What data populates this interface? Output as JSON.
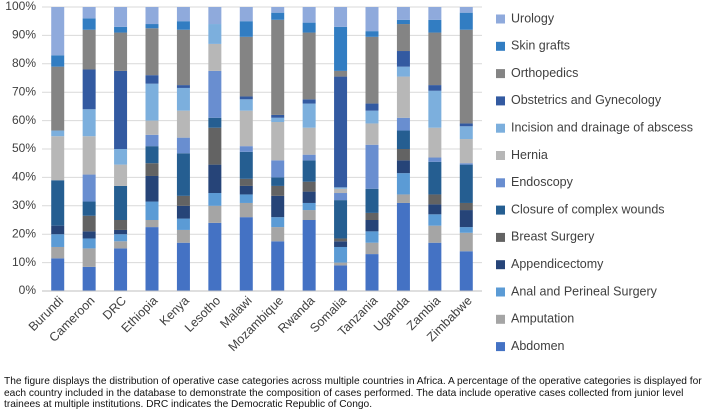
{
  "chart_data": {
    "type": "stacked_bar",
    "categories": [
      "Burundi",
      "Cameroon",
      "DRC",
      "Ethiopia",
      "Kenya",
      "Lesotho",
      "Malawi",
      "Mozambique",
      "Rwanda",
      "Somalia",
      "Tanzania",
      "Uganda",
      "Zambia",
      "Zimbabwe"
    ],
    "series": [
      {
        "name": "Abdomen",
        "color": "#4472c4",
        "values": [
          11.5,
          8.5,
          15,
          22.5,
          17,
          24,
          26,
          17.5,
          25,
          9,
          13,
          31,
          17,
          14
        ]
      },
      {
        "name": "Amputation",
        "color": "#a5a5a5",
        "values": [
          4,
          6.5,
          2.5,
          2.5,
          4.5,
          6,
          5,
          5,
          3.5,
          1,
          4,
          3,
          6,
          6.5
        ]
      },
      {
        "name": "Anal and Perineal Surgery",
        "color": "#5b9bd5",
        "values": [
          4.5,
          3.5,
          2.5,
          6.5,
          4,
          4.5,
          3,
          3.5,
          2.5,
          5.5,
          4,
          7.5,
          4,
          2
        ]
      },
      {
        "name": "Appendicectomy",
        "color": "#264478",
        "values": [
          3,
          2.5,
          1.5,
          9,
          4.5,
          10,
          3,
          7.5,
          4,
          2,
          4,
          4.5,
          3.5,
          6
        ]
      },
      {
        "name": "Breast Surgery",
        "color": "#636363",
        "values": [
          0,
          5.5,
          3.5,
          4.5,
          3.5,
          13,
          2.5,
          3.5,
          3.5,
          1,
          2.5,
          4,
          3.5,
          2.5
        ]
      },
      {
        "name": "Closure of complex wounds",
        "color": "#255e91",
        "values": [
          16,
          5,
          12,
          6,
          15,
          3.5,
          9.5,
          3,
          7.5,
          13.5,
          8.5,
          6.5,
          11.5,
          13.5
        ]
      },
      {
        "name": "Endoscopy",
        "color": "#698ed0",
        "values": [
          0,
          9.5,
          0,
          4,
          5.5,
          16.5,
          2,
          6,
          2,
          2.5,
          15.5,
          4.5,
          1.5,
          0.5
        ]
      },
      {
        "name": "Hernia",
        "color": "#b7b7b7",
        "values": [
          15.5,
          13.5,
          7.5,
          5,
          9.5,
          9.5,
          12.5,
          13.5,
          9.5,
          1.5,
          7.5,
          14.5,
          10.5,
          8.5
        ]
      },
      {
        "name": "Incision and drainage of abscess",
        "color": "#7cafdd",
        "values": [
          2,
          9.5,
          5.5,
          13,
          8,
          7,
          4,
          1.5,
          8.5,
          0.5,
          4.5,
          3.5,
          13,
          4.5
        ]
      },
      {
        "name": "Obstetrics and Gynecology",
        "color": "#335aa1",
        "values": [
          0,
          14,
          27.5,
          3,
          1,
          0,
          1,
          1,
          1.5,
          39,
          2.5,
          5.5,
          2,
          1
        ]
      },
      {
        "name": "Orthopedics",
        "color": "#848484",
        "values": [
          22.5,
          14,
          13.5,
          16.5,
          19.5,
          0,
          21,
          33.5,
          23.5,
          2,
          23.5,
          9.5,
          18.5,
          33
        ]
      },
      {
        "name": "Skin grafts",
        "color": "#327dc2",
        "values": [
          4,
          4,
          2,
          1.5,
          3,
          0,
          5.5,
          2.5,
          3.5,
          15.5,
          2,
          1.5,
          4.5,
          6
        ]
      },
      {
        "name": "Urology",
        "color": "#8faadc",
        "values": [
          17,
          4,
          7,
          6,
          5,
          6,
          5,
          2,
          5.5,
          7,
          8.5,
          4.5,
          4.5,
          2
        ]
      }
    ],
    "ylim": [
      0,
      100
    ],
    "yticks": [
      {
        "value": 0,
        "label": "0%"
      },
      {
        "value": 10,
        "label": "10%"
      },
      {
        "value": 20,
        "label": "20%"
      },
      {
        "value": 30,
        "label": "30%"
      },
      {
        "value": 40,
        "label": "40%"
      },
      {
        "value": 50,
        "label": "50%"
      },
      {
        "value": 60,
        "label": "60%"
      },
      {
        "value": 70,
        "label": "70%"
      },
      {
        "value": 80,
        "label": "80%"
      },
      {
        "value": 90,
        "label": "90%"
      },
      {
        "value": 100,
        "label": "100%"
      }
    ],
    "grid": true,
    "legend": "right",
    "caption": "The figure displays the distribution of operative case categories across multiple countries in Africa. A percentage of the operative categories is displayed for each country included in the database to demonstrate the composition of cases performed. The data include operative cases collected from junior level trainees at multiple institutions. DRC indicates the Democratic Republic of Congo."
  }
}
